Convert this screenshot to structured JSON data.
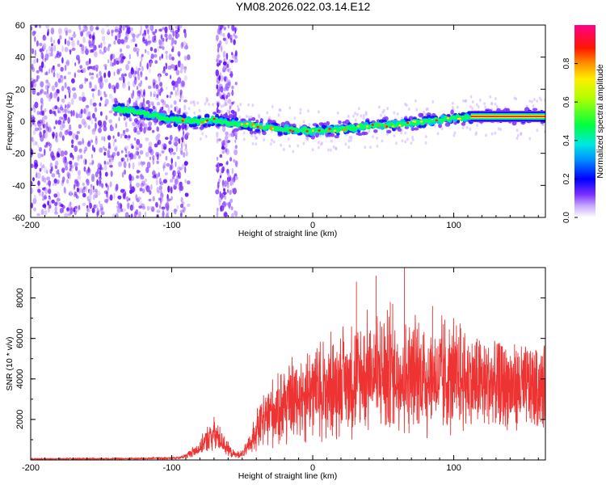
{
  "title": "YM08.2026.022.03.14.E12",
  "chart_data": [
    {
      "type": "heatmap",
      "xlabel": "Height of straight line (km)",
      "ylabel": "Frequency (Hz)",
      "xlim": [
        -200,
        165
      ],
      "ylim": [
        -60,
        60
      ],
      "xticks": [
        -200,
        -100,
        0,
        100
      ],
      "yticks": [
        -60,
        -40,
        -20,
        0,
        20,
        40,
        60
      ],
      "xtick_labels": [
        "-200",
        "-100",
        "0",
        "100"
      ],
      "ytick_labels": [
        "-60",
        "-40",
        "-20",
        "0",
        "20",
        "40",
        "60"
      ],
      "colorbar": {
        "label": "Normalized spectral amplitude",
        "range": [
          0,
          1
        ],
        "ticks": [
          0,
          0.2,
          0.4,
          0.6,
          0.8
        ],
        "tick_labels": [
          "0.0",
          "0.2",
          "0.4",
          "0.6",
          "0.8"
        ]
      },
      "ridge": {
        "x": [
          -140,
          -120,
          -100,
          -80,
          -70,
          -60,
          -40,
          -20,
          0,
          20,
          40,
          60,
          80,
          100,
          120,
          140,
          165
        ],
        "y": [
          8,
          5,
          1,
          0,
          1,
          -1,
          -3,
          -5,
          -6,
          -5,
          -3,
          -2,
          0,
          2,
          3,
          3,
          3
        ]
      },
      "noise_regions": [
        {
          "x": [
            -200,
            -88
          ],
          "level": "dense"
        },
        {
          "x": [
            -68,
            -54
          ],
          "level": "band"
        }
      ]
    },
    {
      "type": "line",
      "xlabel": "Height of straight line (km)",
      "ylabel": "SNR (10 * v/v)",
      "xlim": [
        -200,
        165
      ],
      "ylim": [
        0,
        9500
      ],
      "xticks": [
        -200,
        -100,
        0,
        100
      ],
      "yticks": [
        2000,
        4000,
        6000,
        8000
      ],
      "xtick_labels": [
        "-200",
        "-100",
        "0",
        "100"
      ],
      "ytick_labels": [
        "2000",
        "4000",
        "6000",
        "8000"
      ],
      "series": [
        {
          "name": "SNR",
          "color": "#ee3333",
          "envelope_x": [
            -200,
            -140,
            -120,
            -95,
            -90,
            -80,
            -75,
            -70,
            -65,
            -60,
            -55,
            -50,
            -45,
            -40,
            -30,
            -20,
            -10,
            0,
            10,
            20,
            30,
            40,
            50,
            60,
            70,
            80,
            90,
            100,
            110,
            120,
            130,
            140,
            150,
            165
          ],
          "envelope_y": [
            50,
            60,
            70,
            100,
            200,
            600,
            1000,
            1300,
            1000,
            500,
            250,
            300,
            700,
            1500,
            2300,
            2800,
            3100,
            3400,
            3500,
            3800,
            4000,
            4200,
            4300,
            4300,
            4200,
            4100,
            4000,
            4000,
            3900,
            3800,
            3700,
            3650,
            3600,
            3550
          ],
          "peaks": [
            {
              "x": 31,
              "y": 8800
            },
            {
              "x": 45,
              "y": 9100
            },
            {
              "x": 65,
              "y": 9600
            },
            {
              "x": 55,
              "y": 7800
            },
            {
              "x": 85,
              "y": 7600
            }
          ]
        }
      ]
    }
  ],
  "colors": {
    "axis": "#000000",
    "line": "#ee3333",
    "noise": "#7a2fff"
  }
}
